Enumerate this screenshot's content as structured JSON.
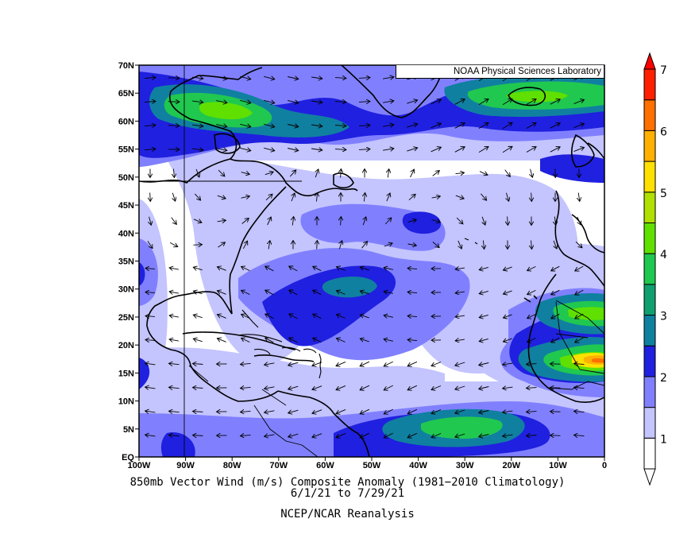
{
  "credit": "NOAA Physical Sciences Laboratory",
  "map": {
    "lat_labels": [
      "70N",
      "65N",
      "60N",
      "55N",
      "50N",
      "45N",
      "40N",
      "35N",
      "30N",
      "25N",
      "20N",
      "15N",
      "10N",
      "5N",
      "EQ"
    ],
    "lon_labels": [
      "100W",
      "90W",
      "80W",
      "70W",
      "60W",
      "50W",
      "40W",
      "30W",
      "20W",
      "10W",
      "0"
    ],
    "lon_range": [
      -100,
      0
    ],
    "lat_range": [
      0,
      70
    ],
    "variable": "850mb vector wind anomaly magnitude",
    "units": "m/s"
  },
  "colorbar": {
    "levels": [
      "1",
      "2",
      "3",
      "4",
      "5",
      "6",
      "7"
    ],
    "colors": [
      "#ffffff",
      "#c4c4ff",
      "#8080ff",
      "#2020e0",
      "#1080a0",
      "#10a070",
      "#20c850",
      "#60e000",
      "#b0e000",
      "#ffe000",
      "#ffb000",
      "#ff7000",
      "#ff2000"
    ]
  },
  "caption": {
    "line1": "850mb Vector Wind (m/s) Composite Anomaly (1981−2010 Climatology)",
    "line2": "6/1/21  to 7/29/21",
    "line3": "NCEP/NCAR Reanalysis"
  }
}
